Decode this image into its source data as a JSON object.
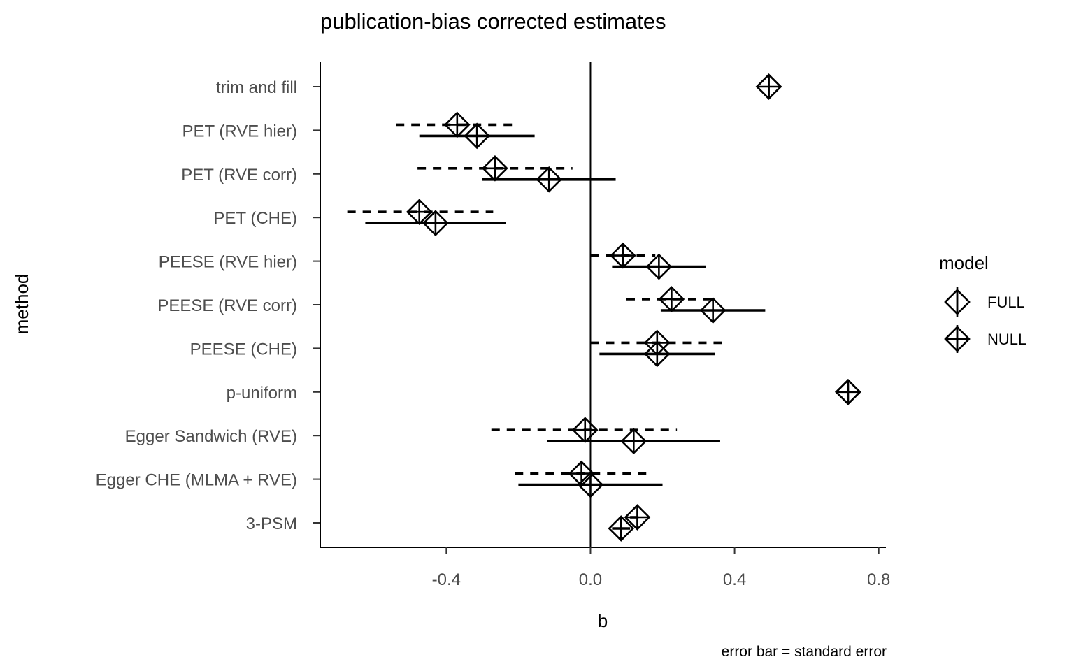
{
  "chart_data": {
    "type": "scatter",
    "title": "publication-bias corrected estimates",
    "xlabel": "b",
    "ylabel": "method",
    "caption": "error bar = standard error",
    "xlim": [
      -0.75,
      0.82
    ],
    "x_ticks": [
      -0.4,
      0.0,
      0.4,
      0.8
    ],
    "x_tick_labels": [
      "-0.4",
      "0.0",
      "0.4",
      "0.8"
    ],
    "reference_line_x": 0,
    "grid": false,
    "legend": {
      "title": "model",
      "position": "right",
      "entries": [
        "FULL",
        "NULL"
      ]
    },
    "categories": [
      "trim and fill",
      "PET (RVE hier)",
      "PET (RVE corr)",
      "PET (CHE)",
      "PEESE (RVE hier)",
      "PEESE (RVE corr)",
      "PEESE (CHE)",
      "p-uniform",
      "Egger Sandwich (RVE)",
      "Egger CHE (MLMA + RVE)",
      "3-PSM"
    ],
    "series": [
      {
        "name": "FULL",
        "line_style": "solid",
        "points": [
          {
            "method": "trim and fill",
            "b": 0.495,
            "lo": null,
            "hi": null
          },
          {
            "method": "PET (RVE hier)",
            "b": -0.315,
            "lo": -0.475,
            "hi": -0.155
          },
          {
            "method": "PET (RVE corr)",
            "b": -0.115,
            "lo": -0.3,
            "hi": 0.07
          },
          {
            "method": "PET (CHE)",
            "b": -0.43,
            "lo": -0.625,
            "hi": -0.235
          },
          {
            "method": "PEESE (RVE hier)",
            "b": 0.19,
            "lo": 0.06,
            "hi": 0.32
          },
          {
            "method": "PEESE (RVE corr)",
            "b": 0.34,
            "lo": 0.195,
            "hi": 0.485
          },
          {
            "method": "PEESE (CHE)",
            "b": 0.185,
            "lo": 0.025,
            "hi": 0.345
          },
          {
            "method": "p-uniform",
            "b": 0.715,
            "lo": null,
            "hi": null
          },
          {
            "method": "Egger Sandwich (RVE)",
            "b": 0.12,
            "lo": -0.12,
            "hi": 0.36
          },
          {
            "method": "Egger CHE (MLMA + RVE)",
            "b": 0.0,
            "lo": -0.2,
            "hi": 0.2
          },
          {
            "method": "3-PSM",
            "b": 0.085,
            "lo": 0.06,
            "hi": 0.11
          }
        ]
      },
      {
        "name": "NULL",
        "line_style": "dashed",
        "points": [
          {
            "method": "trim and fill",
            "b": 0.495,
            "lo": null,
            "hi": null
          },
          {
            "method": "PET (RVE hier)",
            "b": -0.37,
            "lo": -0.54,
            "hi": -0.2
          },
          {
            "method": "PET (RVE corr)",
            "b": -0.265,
            "lo": -0.48,
            "hi": -0.05
          },
          {
            "method": "PET (CHE)",
            "b": -0.475,
            "lo": -0.675,
            "hi": -0.27
          },
          {
            "method": "PEESE (RVE hier)",
            "b": 0.09,
            "lo": 0.0,
            "hi": 0.18
          },
          {
            "method": "PEESE (RVE corr)",
            "b": 0.225,
            "lo": 0.1,
            "hi": 0.35
          },
          {
            "method": "PEESE (CHE)",
            "b": 0.185,
            "lo": 0.0,
            "hi": 0.37
          },
          {
            "method": "p-uniform",
            "b": 0.715,
            "lo": null,
            "hi": null
          },
          {
            "method": "Egger Sandwich (RVE)",
            "b": -0.015,
            "lo": -0.275,
            "hi": 0.24
          },
          {
            "method": "Egger CHE (MLMA + RVE)",
            "b": -0.025,
            "lo": -0.21,
            "hi": 0.16
          },
          {
            "method": "3-PSM",
            "b": 0.13,
            "lo": 0.11,
            "hi": 0.15
          }
        ]
      }
    ]
  }
}
